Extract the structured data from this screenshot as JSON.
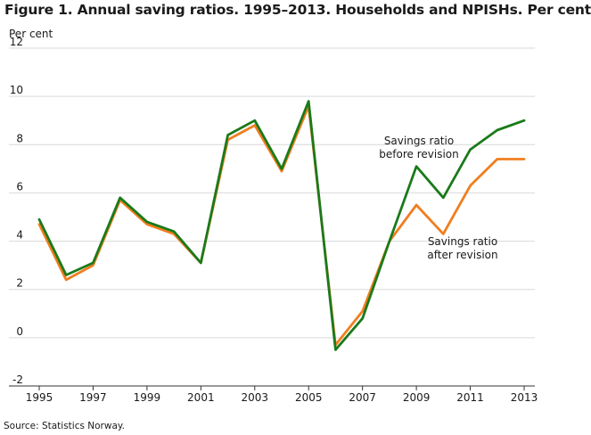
{
  "title": "Figure 1. Annual saving ratios. 1995–2013. Households and NPISHs. Per cent",
  "source": "Source: Statistics Norway.",
  "colors": {
    "before": "#1a7a1a",
    "after": "#f07e1f",
    "grid": "#d9d9d9",
    "axis": "#333333"
  },
  "chart_data": {
    "type": "line",
    "ylabel": "Per cent",
    "xlabel": "",
    "x": [
      1995,
      1996,
      1997,
      1998,
      1999,
      2000,
      2001,
      2002,
      2003,
      2004,
      2005,
      2006,
      2007,
      2008,
      2009,
      2010,
      2011,
      2012,
      2013
    ],
    "xlim": [
      1995,
      2013
    ],
    "ylim": [
      -2,
      12
    ],
    "yticks": [
      -2,
      0,
      2,
      4,
      6,
      8,
      10,
      12
    ],
    "xticks": [
      1995,
      1997,
      1999,
      2001,
      2003,
      2005,
      2007,
      2009,
      2011,
      2013
    ],
    "grid": true,
    "series": [
      {
        "name": "Savings ratio before revision",
        "annotation_lines": [
          "Savings ratio",
          "before revision"
        ],
        "values": [
          4.9,
          2.6,
          3.1,
          5.8,
          4.8,
          4.4,
          3.1,
          8.4,
          9.0,
          7.0,
          9.8,
          -0.5,
          0.8,
          4.0,
          7.1,
          5.8,
          7.8,
          8.6,
          9.0
        ]
      },
      {
        "name": "Savings ratio after revision",
        "annotation_lines": [
          "Savings ratio",
          "after revision"
        ],
        "values": [
          4.7,
          2.4,
          3.0,
          5.7,
          4.7,
          4.3,
          3.1,
          8.2,
          8.8,
          6.9,
          9.6,
          -0.3,
          1.1,
          4.0,
          5.5,
          4.3,
          6.3,
          7.4,
          7.4
        ]
      }
    ]
  }
}
